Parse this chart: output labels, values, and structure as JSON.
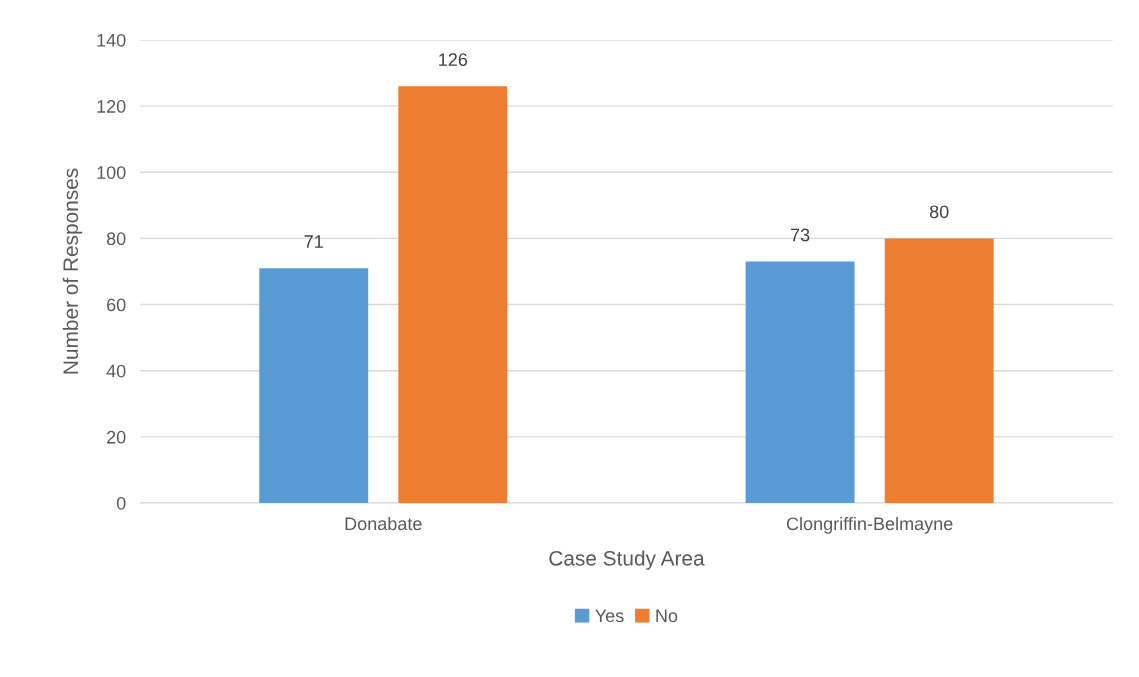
{
  "chart_data": {
    "type": "bar",
    "xlabel": "Case Study Area",
    "ylabel": "Number of Responses",
    "categories": [
      "Donabate",
      "Clongriffin-Belmayne"
    ],
    "series": [
      {
        "name": "Yes",
        "color": "#5b9bd5",
        "values": [
          71,
          73
        ]
      },
      {
        "name": "No",
        "color": "#ed7d31",
        "values": [
          126,
          80
        ]
      }
    ],
    "ylim": [
      0,
      140
    ],
    "yticks": [
      0,
      20,
      40,
      60,
      80,
      100,
      120,
      140
    ],
    "grid": "y",
    "legend": "bottom",
    "data_labels": true
  }
}
